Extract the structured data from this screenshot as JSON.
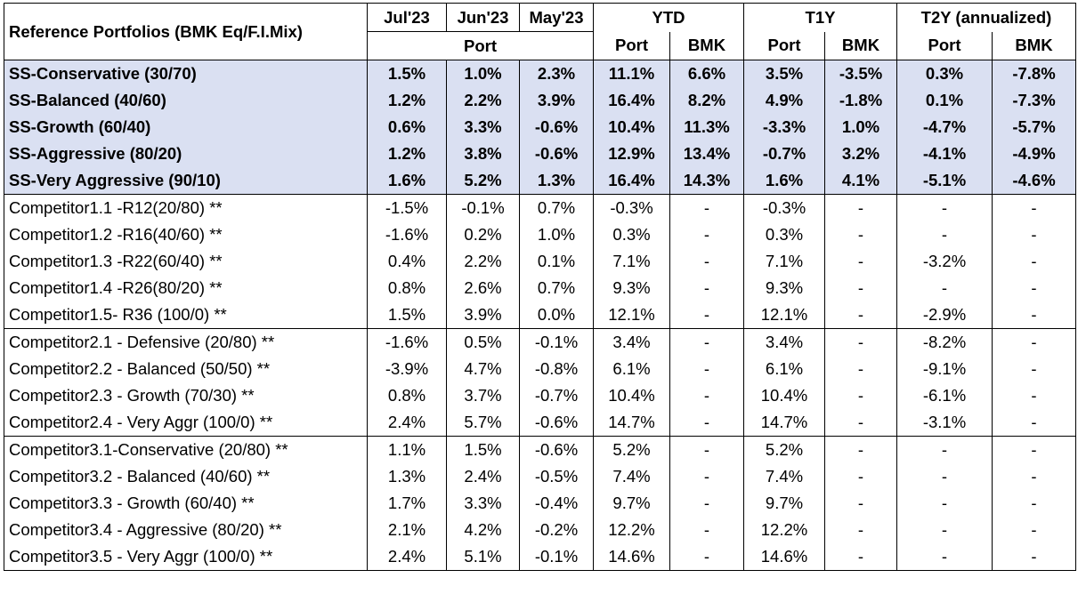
{
  "header": {
    "title": "Reference Portfolios (BMK Eq/F.I.Mix)",
    "jul": "Jul'23",
    "jun": "Jun'23",
    "may": "May'23",
    "ytd": "YTD",
    "t1y": "T1Y",
    "t2y": "T2Y (annualized)",
    "port": "Port",
    "bmk": "BMK"
  },
  "ss_rows": [
    {
      "name": "SS-Conservative (30/70)",
      "c": [
        "1.5%",
        "1.0%",
        "2.3%",
        "11.1%",
        "6.6%",
        "3.5%",
        "-3.5%",
        "0.3%",
        "-7.8%"
      ]
    },
    {
      "name": "SS-Balanced (40/60)",
      "c": [
        "1.2%",
        "2.2%",
        "3.9%",
        "16.4%",
        "8.2%",
        "4.9%",
        "-1.8%",
        "0.1%",
        "-7.3%"
      ]
    },
    {
      "name": "SS-Growth (60/40)",
      "c": [
        "0.6%",
        "3.3%",
        "-0.6%",
        "10.4%",
        "11.3%",
        "-3.3%",
        "1.0%",
        "-4.7%",
        "-5.7%"
      ]
    },
    {
      "name": "SS-Aggressive (80/20)",
      "c": [
        "1.2%",
        "3.8%",
        "-0.6%",
        "12.9%",
        "13.4%",
        "-0.7%",
        "3.2%",
        "-4.1%",
        "-4.9%"
      ]
    },
    {
      "name": "SS-Very Aggressive (90/10)",
      "c": [
        "1.6%",
        "5.2%",
        "1.3%",
        "16.4%",
        "14.3%",
        "1.6%",
        "4.1%",
        "-5.1%",
        "-4.6%"
      ]
    }
  ],
  "comp1_rows": [
    {
      "name": "Competitor1.1 -R12(20/80) **",
      "c": [
        "-1.5%",
        "-0.1%",
        "0.7%",
        "-0.3%",
        "-",
        "-0.3%",
        "-",
        "-",
        "-"
      ]
    },
    {
      "name": "Competitor1.2 -R16(40/60) **",
      "c": [
        "-1.6%",
        "0.2%",
        "1.0%",
        "0.3%",
        "-",
        "0.3%",
        "-",
        "-",
        "-"
      ]
    },
    {
      "name": "Competitor1.3 -R22(60/40) **",
      "c": [
        "0.4%",
        "2.2%",
        "0.1%",
        "7.1%",
        "-",
        "7.1%",
        "-",
        "-3.2%",
        "-"
      ]
    },
    {
      "name": "Competitor1.4 -R26(80/20) **",
      "c": [
        "0.8%",
        "2.6%",
        "0.7%",
        "9.3%",
        "-",
        "9.3%",
        "-",
        "-",
        "-"
      ]
    },
    {
      "name": "Competitor1.5- R36 (100/0) **",
      "c": [
        "1.5%",
        "3.9%",
        "0.0%",
        "12.1%",
        "-",
        "12.1%",
        "-",
        "-2.9%",
        "-"
      ]
    }
  ],
  "comp2_rows": [
    {
      "name": "Competitor2.1  - Defensive  (20/80) **",
      "c": [
        "-1.6%",
        "0.5%",
        "-0.1%",
        "3.4%",
        "-",
        "3.4%",
        "-",
        "-8.2%",
        "-"
      ]
    },
    {
      "name": "Competitor2.2  - Balanced (50/50) **",
      "c": [
        "-3.9%",
        "4.7%",
        "-0.8%",
        "6.1%",
        "-",
        "6.1%",
        "-",
        "-9.1%",
        "-"
      ]
    },
    {
      "name": "Competitor2.3  - Growth  (70/30) **",
      "c": [
        "0.8%",
        "3.7%",
        "-0.7%",
        "10.4%",
        "-",
        "10.4%",
        "-",
        "-6.1%",
        "-"
      ]
    },
    {
      "name": "Competitor2.4  - Very Aggr  (100/0) **",
      "c": [
        "2.4%",
        "5.7%",
        "-0.6%",
        "14.7%",
        "-",
        "14.7%",
        "-",
        "-3.1%",
        "-"
      ]
    }
  ],
  "comp3_rows": [
    {
      "name": "Competitor3.1-Conservative (20/80) **",
      "c": [
        "1.1%",
        "1.5%",
        "-0.6%",
        "5.2%",
        "-",
        "5.2%",
        "-",
        "-",
        "-"
      ]
    },
    {
      "name": "Competitor3.2 - Balanced  (40/60) **",
      "c": [
        "1.3%",
        "2.4%",
        "-0.5%",
        "7.4%",
        "-",
        "7.4%",
        "-",
        "-",
        "-"
      ]
    },
    {
      "name": "Competitor3.3 - Growth  (60/40) **",
      "c": [
        "1.7%",
        "3.3%",
        "-0.4%",
        "9.7%",
        "-",
        "9.7%",
        "-",
        "-",
        "-"
      ]
    },
    {
      "name": "Competitor3.4 - Aggressive  (80/20) **",
      "c": [
        "2.1%",
        "4.2%",
        "-0.2%",
        "12.2%",
        "-",
        "12.2%",
        "-",
        "-",
        "-"
      ]
    },
    {
      "name": "Competitor3.5  - Very Aggr (100/0) **",
      "c": [
        "2.4%",
        "5.1%",
        "-0.1%",
        "14.6%",
        "-",
        "14.6%",
        "-",
        "-",
        "-"
      ]
    }
  ],
  "colors": {
    "highlight_row_bg": "#dae0f2",
    "border": "#000000",
    "text": "#000000"
  }
}
